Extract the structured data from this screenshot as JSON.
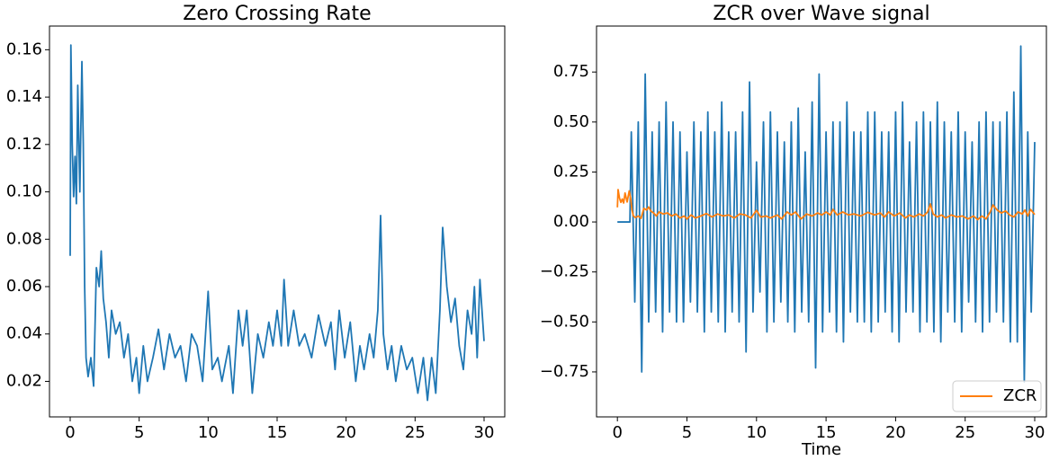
{
  "chart_data": [
    {
      "type": "line",
      "title": "Zero Crossing Rate",
      "xlim": [
        -1.5,
        31.5
      ],
      "ylim": [
        0.005,
        0.17
      ],
      "xticks": [
        0,
        5,
        10,
        15,
        20,
        25,
        30
      ],
      "yticks": [
        0.02,
        0.04,
        0.06,
        0.08,
        {
          "value": 0.1,
          "label": "0.10"
        },
        0.12,
        0.14,
        0.16
      ],
      "series": [
        {
          "color": "#1f77b4",
          "x": [
            0,
            0.05,
            0.15,
            0.25,
            0.35,
            0.45,
            0.55,
            0.7,
            0.85,
            0.95,
            1.05,
            1.15,
            1.3,
            1.5,
            1.7,
            1.9,
            2.1,
            2.25,
            2.4,
            2.6,
            2.8,
            3.0,
            3.3,
            3.6,
            3.9,
            4.2,
            4.5,
            4.8,
            5.0,
            5.3,
            5.6,
            6.0,
            6.4,
            6.8,
            7.2,
            7.6,
            8.0,
            8.4,
            8.8,
            9.2,
            9.6,
            10.0,
            10.3,
            10.7,
            11.0,
            11.5,
            11.8,
            12.2,
            12.5,
            12.8,
            13.2,
            13.6,
            14.0,
            14.4,
            14.7,
            15.0,
            15.3,
            15.5,
            15.8,
            16.2,
            16.6,
            17.0,
            17.5,
            18.0,
            18.5,
            18.9,
            19.2,
            19.5,
            19.9,
            20.3,
            20.7,
            21.0,
            21.3,
            21.7,
            22.0,
            22.3,
            22.5,
            22.7,
            23.0,
            23.3,
            23.6,
            24.0,
            24.4,
            24.8,
            25.2,
            25.6,
            25.9,
            26.2,
            26.5,
            26.8,
            27.0,
            27.3,
            27.6,
            27.9,
            28.2,
            28.5,
            28.8,
            29.1,
            29.3,
            29.5,
            29.7,
            29.85,
            30.0
          ],
          "values": [
            0.073,
            0.162,
            0.12,
            0.098,
            0.115,
            0.095,
            0.145,
            0.1,
            0.155,
            0.12,
            0.06,
            0.03,
            0.022,
            0.03,
            0.018,
            0.068,
            0.06,
            0.075,
            0.055,
            0.045,
            0.03,
            0.05,
            0.04,
            0.045,
            0.03,
            0.04,
            0.02,
            0.03,
            0.015,
            0.035,
            0.02,
            0.03,
            0.042,
            0.025,
            0.04,
            0.03,
            0.035,
            0.02,
            0.04,
            0.035,
            0.02,
            0.058,
            0.025,
            0.03,
            0.02,
            0.035,
            0.015,
            0.05,
            0.035,
            0.05,
            0.015,
            0.04,
            0.03,
            0.045,
            0.035,
            0.05,
            0.035,
            0.063,
            0.035,
            0.05,
            0.035,
            0.04,
            0.03,
            0.048,
            0.035,
            0.045,
            0.025,
            0.05,
            0.03,
            0.045,
            0.02,
            0.035,
            0.025,
            0.04,
            0.03,
            0.05,
            0.09,
            0.04,
            0.025,
            0.035,
            0.02,
            0.035,
            0.025,
            0.03,
            0.015,
            0.03,
            0.012,
            0.03,
            0.015,
            0.05,
            0.085,
            0.06,
            0.045,
            0.055,
            0.035,
            0.025,
            0.05,
            0.04,
            0.06,
            0.03,
            0.063,
            0.05,
            0.037
          ]
        }
      ]
    },
    {
      "type": "line",
      "title": "ZCR over Wave signal",
      "x_label": "Time",
      "xlim": [
        -1.5,
        30.84
      ],
      "ylim": [
        -0.975,
        0.98
      ],
      "xticks": [
        0,
        5,
        10,
        15,
        20,
        25,
        30
      ],
      "yticks": [
        {
          "value": -0.75,
          "label": "−0.75"
        },
        {
          "value": -0.5,
          "label": "−0.50"
        },
        {
          "value": -0.25,
          "label": "−0.25"
        },
        {
          "value": 0,
          "label": "0.00"
        },
        0.25,
        {
          "value": 0.5,
          "label": "0.50"
        },
        0.75
      ],
      "legend": "lower right",
      "series": [
        {
          "color": "#1f77b4",
          "x": [
            0,
            0.9,
            1.0,
            1.25,
            1.5,
            1.75,
            2.0,
            2.25,
            2.5,
            2.75,
            3.0,
            3.25,
            3.5,
            3.75,
            4.0,
            4.25,
            4.5,
            4.75,
            5.0,
            5.25,
            5.5,
            5.75,
            6.0,
            6.25,
            6.5,
            6.75,
            7.0,
            7.25,
            7.5,
            7.75,
            8.0,
            8.25,
            8.5,
            8.75,
            9.0,
            9.25,
            9.5,
            9.75,
            10.0,
            10.25,
            10.5,
            10.75,
            11.0,
            11.25,
            11.5,
            11.75,
            12.0,
            12.25,
            12.5,
            12.75,
            13.0,
            13.25,
            13.5,
            13.75,
            14.0,
            14.25,
            14.5,
            14.75,
            15.0,
            15.25,
            15.5,
            15.75,
            16.0,
            16.25,
            16.5,
            16.75,
            17.0,
            17.25,
            17.5,
            17.75,
            18.0,
            18.25,
            18.5,
            18.75,
            19.0,
            19.25,
            19.5,
            19.75,
            20.0,
            20.25,
            20.5,
            20.75,
            21.0,
            21.25,
            21.5,
            21.75,
            22.0,
            22.25,
            22.5,
            22.75,
            23.0,
            23.25,
            23.5,
            23.75,
            24.0,
            24.25,
            24.5,
            24.75,
            25.0,
            25.25,
            25.5,
            25.75,
            26.0,
            26.25,
            26.5,
            26.75,
            27.0,
            27.25,
            27.5,
            27.75,
            28.0,
            28.25,
            28.5,
            28.75,
            29.0,
            29.25,
            29.5,
            29.75,
            30.0
          ],
          "values": [
            0,
            0,
            0.45,
            -0.4,
            0.5,
            -0.75,
            0.74,
            -0.5,
            0.45,
            -0.45,
            0.5,
            -0.55,
            0.6,
            -0.45,
            0.5,
            -0.5,
            0.45,
            -0.5,
            0.35,
            -0.4,
            0.5,
            -0.45,
            0.45,
            -0.55,
            0.55,
            -0.45,
            0.45,
            -0.5,
            0.6,
            -0.55,
            0.45,
            -0.45,
            0.45,
            -0.5,
            0.55,
            -0.65,
            0.7,
            -0.45,
            0.3,
            -0.35,
            0.5,
            -0.55,
            0.55,
            -0.5,
            0.45,
            -0.4,
            0.4,
            -0.5,
            0.5,
            -0.55,
            0.57,
            -0.45,
            0.35,
            -0.5,
            0.6,
            -0.73,
            0.74,
            -0.55,
            0.45,
            -0.45,
            0.5,
            -0.55,
            0.5,
            -0.6,
            0.6,
            -0.45,
            0.45,
            -0.5,
            0.45,
            -0.5,
            0.55,
            -0.55,
            0.55,
            -0.5,
            0.45,
            -0.45,
            0.45,
            -0.55,
            0.55,
            -0.6,
            0.6,
            -0.45,
            0.4,
            -0.45,
            0.5,
            -0.55,
            0.55,
            -0.5,
            0.5,
            -0.55,
            0.6,
            -0.6,
            0.5,
            -0.45,
            0.45,
            -0.5,
            0.55,
            -0.55,
            0.45,
            -0.4,
            0.4,
            -0.5,
            0.5,
            -0.55,
            0.55,
            -0.5,
            0.5,
            -0.45,
            0.5,
            -0.5,
            0.55,
            -0.6,
            0.65,
            -0.6,
            0.88,
            -0.8,
            0.45,
            -0.45,
            0.4
          ]
        },
        {
          "name": "ZCR",
          "color": "#ff7f0e",
          "x": [
            0,
            0.05,
            0.15,
            0.25,
            0.35,
            0.45,
            0.55,
            0.7,
            0.85,
            0.95,
            1.05,
            1.15,
            1.3,
            1.5,
            1.7,
            1.9,
            2.1,
            2.25,
            2.4,
            2.6,
            2.8,
            3.0,
            3.3,
            3.6,
            3.9,
            4.2,
            4.5,
            4.8,
            5.0,
            5.3,
            5.6,
            6.0,
            6.4,
            6.8,
            7.2,
            7.6,
            8.0,
            8.4,
            8.8,
            9.2,
            9.6,
            10.0,
            10.3,
            10.7,
            11.0,
            11.5,
            11.8,
            12.2,
            12.5,
            12.8,
            13.2,
            13.6,
            14.0,
            14.4,
            14.7,
            15.0,
            15.3,
            15.5,
            15.8,
            16.2,
            16.6,
            17.0,
            17.5,
            18.0,
            18.5,
            18.9,
            19.2,
            19.5,
            19.9,
            20.3,
            20.7,
            21.0,
            21.3,
            21.7,
            22.0,
            22.3,
            22.5,
            22.7,
            23.0,
            23.3,
            23.6,
            24.0,
            24.4,
            24.8,
            25.2,
            25.6,
            25.9,
            26.2,
            26.5,
            26.8,
            27.0,
            27.3,
            27.6,
            27.9,
            28.2,
            28.5,
            28.8,
            29.1,
            29.3,
            29.5,
            29.7,
            29.85,
            30.0
          ],
          "values": [
            0.073,
            0.162,
            0.12,
            0.098,
            0.115,
            0.095,
            0.145,
            0.1,
            0.155,
            0.12,
            0.06,
            0.03,
            0.022,
            0.03,
            0.018,
            0.068,
            0.06,
            0.075,
            0.055,
            0.045,
            0.03,
            0.05,
            0.04,
            0.045,
            0.03,
            0.04,
            0.02,
            0.03,
            0.015,
            0.035,
            0.02,
            0.03,
            0.042,
            0.025,
            0.04,
            0.03,
            0.035,
            0.02,
            0.04,
            0.035,
            0.02,
            0.058,
            0.025,
            0.03,
            0.02,
            0.035,
            0.015,
            0.05,
            0.035,
            0.05,
            0.015,
            0.04,
            0.03,
            0.045,
            0.035,
            0.05,
            0.035,
            0.063,
            0.035,
            0.05,
            0.035,
            0.04,
            0.03,
            0.048,
            0.035,
            0.045,
            0.025,
            0.05,
            0.03,
            0.045,
            0.02,
            0.035,
            0.025,
            0.04,
            0.03,
            0.05,
            0.09,
            0.04,
            0.025,
            0.035,
            0.02,
            0.035,
            0.025,
            0.03,
            0.015,
            0.03,
            0.012,
            0.03,
            0.015,
            0.05,
            0.085,
            0.06,
            0.045,
            0.055,
            0.035,
            0.025,
            0.05,
            0.04,
            0.06,
            0.03,
            0.063,
            0.05,
            0.037
          ]
        }
      ]
    }
  ]
}
